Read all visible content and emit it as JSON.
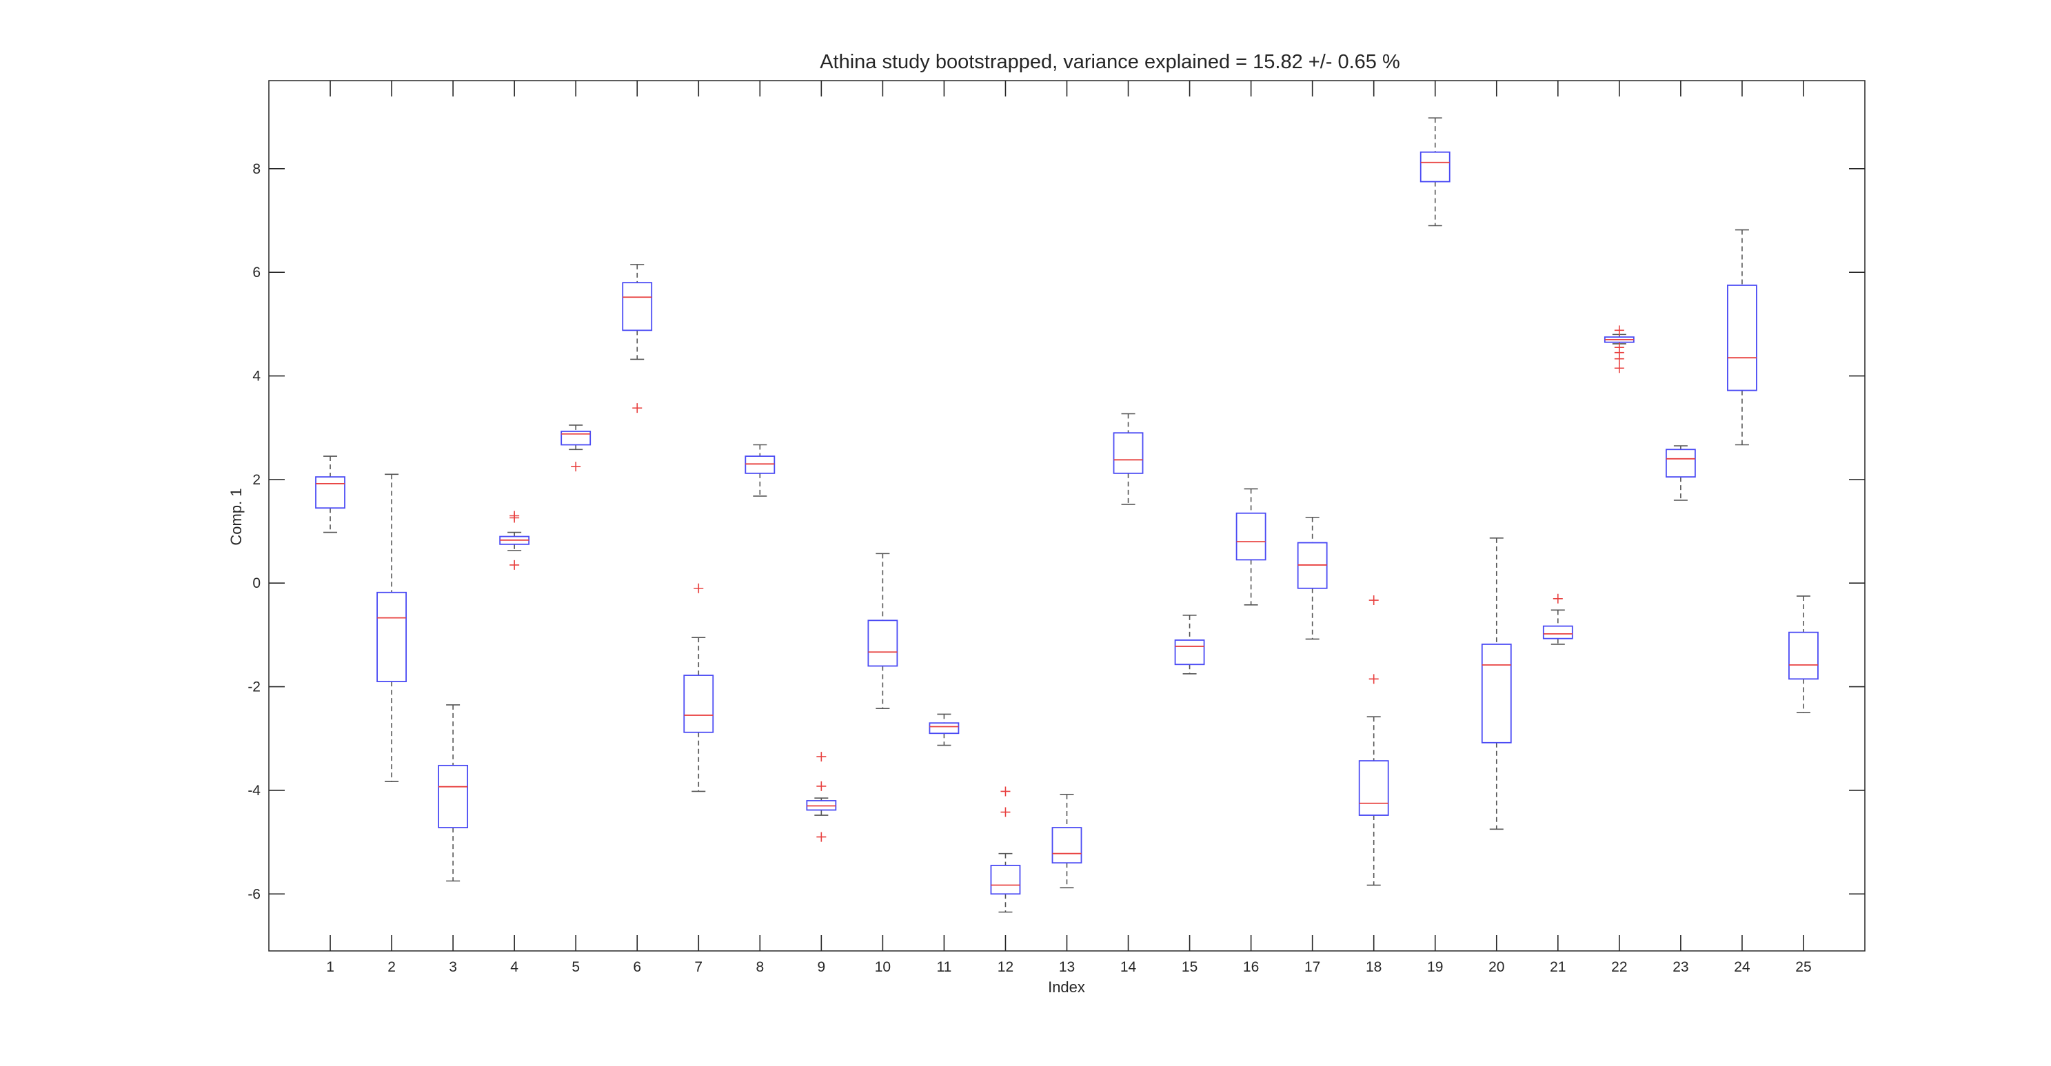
{
  "chart_data": {
    "type": "box",
    "title": "Athina study bootstrapped, variance explained = 15.82 +/- 0.65 %",
    "xlabel": "Index",
    "ylabel": "Comp. 1",
    "xlim": [
      0,
      26
    ],
    "ylim": [
      -7.1,
      9.7
    ],
    "yticks": [
      -6,
      -4,
      -2,
      0,
      2,
      4,
      6,
      8
    ],
    "grid": false,
    "legend": "none",
    "colors": {
      "box": "#4a4af4",
      "median": "#e8403f",
      "whisker": "#555555",
      "outlier": "#e8403f",
      "axis": "#262626"
    },
    "boxes": [
      {
        "index": 1,
        "whisker_low": 0.98,
        "q1": 1.45,
        "median": 1.92,
        "q3": 2.05,
        "whisker_high": 2.45,
        "outliers": []
      },
      {
        "index": 2,
        "whisker_low": -3.83,
        "q1": -1.9,
        "median": -0.67,
        "q3": -0.18,
        "whisker_high": 2.1,
        "outliers": []
      },
      {
        "index": 3,
        "whisker_low": -5.75,
        "q1": -4.72,
        "median": -3.93,
        "q3": -3.52,
        "whisker_high": -2.35,
        "outliers": []
      },
      {
        "index": 4,
        "whisker_low": 0.63,
        "q1": 0.75,
        "median": 0.83,
        "q3": 0.9,
        "whisker_high": 0.98,
        "outliers": [
          1.26,
          1.3,
          0.35
        ]
      },
      {
        "index": 5,
        "whisker_low": 2.58,
        "q1": 2.67,
        "median": 2.88,
        "q3": 2.93,
        "whisker_high": 3.05,
        "outliers": [
          2.25
        ]
      },
      {
        "index": 6,
        "whisker_low": 4.32,
        "q1": 4.88,
        "median": 5.52,
        "q3": 5.8,
        "whisker_high": 6.15,
        "outliers": [
          3.38
        ]
      },
      {
        "index": 7,
        "whisker_low": -4.02,
        "q1": -2.88,
        "median": -2.55,
        "q3": -1.78,
        "whisker_high": -1.05,
        "outliers": [
          -0.1
        ]
      },
      {
        "index": 8,
        "whisker_low": 1.68,
        "q1": 2.12,
        "median": 2.3,
        "q3": 2.45,
        "whisker_high": 2.67,
        "outliers": []
      },
      {
        "index": 9,
        "whisker_low": -4.48,
        "q1": -4.38,
        "median": -4.3,
        "q3": -4.2,
        "whisker_high": -4.15,
        "outliers": [
          -3.35,
          -3.92,
          -4.9
        ]
      },
      {
        "index": 10,
        "whisker_low": -2.42,
        "q1": -1.6,
        "median": -1.33,
        "q3": -0.72,
        "whisker_high": 0.57,
        "outliers": []
      },
      {
        "index": 11,
        "whisker_low": -3.13,
        "q1": -2.9,
        "median": -2.77,
        "q3": -2.7,
        "whisker_high": -2.53,
        "outliers": []
      },
      {
        "index": 12,
        "whisker_low": -6.35,
        "q1": -6.0,
        "median": -5.83,
        "q3": -5.45,
        "whisker_high": -5.22,
        "outliers": [
          -4.02,
          -4.42
        ]
      },
      {
        "index": 13,
        "whisker_low": -5.88,
        "q1": -5.4,
        "median": -5.22,
        "q3": -4.72,
        "whisker_high": -4.08,
        "outliers": []
      },
      {
        "index": 14,
        "whisker_low": 1.52,
        "q1": 2.12,
        "median": 2.38,
        "q3": 2.9,
        "whisker_high": 3.27,
        "outliers": []
      },
      {
        "index": 15,
        "whisker_low": -1.75,
        "q1": -1.57,
        "median": -1.22,
        "q3": -1.1,
        "whisker_high": -0.62,
        "outliers": []
      },
      {
        "index": 16,
        "whisker_low": -0.42,
        "q1": 0.45,
        "median": 0.8,
        "q3": 1.35,
        "whisker_high": 1.82,
        "outliers": []
      },
      {
        "index": 17,
        "whisker_low": -1.08,
        "q1": -0.1,
        "median": 0.35,
        "q3": 0.78,
        "whisker_high": 1.27,
        "outliers": []
      },
      {
        "index": 18,
        "whisker_low": -5.83,
        "q1": -4.48,
        "median": -4.25,
        "q3": -3.43,
        "whisker_high": -2.58,
        "outliers": [
          -0.33,
          -1.85
        ]
      },
      {
        "index": 19,
        "whisker_low": 6.9,
        "q1": 7.75,
        "median": 8.12,
        "q3": 8.32,
        "whisker_high": 8.98,
        "outliers": []
      },
      {
        "index": 20,
        "whisker_low": -4.75,
        "q1": -3.08,
        "median": -1.58,
        "q3": -1.18,
        "whisker_high": 0.87,
        "outliers": []
      },
      {
        "index": 21,
        "whisker_low": -1.18,
        "q1": -1.07,
        "median": -0.98,
        "q3": -0.83,
        "whisker_high": -0.52,
        "outliers": [
          -0.3
        ]
      },
      {
        "index": 22,
        "whisker_low": 4.62,
        "q1": 4.65,
        "median": 4.7,
        "q3": 4.75,
        "whisker_high": 4.8,
        "outliers": [
          4.88,
          4.55,
          4.45,
          4.33,
          4.15
        ]
      },
      {
        "index": 23,
        "whisker_low": 1.6,
        "q1": 2.05,
        "median": 2.4,
        "q3": 2.58,
        "whisker_high": 2.65,
        "outliers": []
      },
      {
        "index": 24,
        "whisker_low": 2.67,
        "q1": 3.72,
        "median": 4.35,
        "q3": 5.75,
        "whisker_high": 6.82,
        "outliers": []
      },
      {
        "index": 25,
        "whisker_low": -2.5,
        "q1": -1.85,
        "median": -1.58,
        "q3": -0.95,
        "whisker_high": -0.25,
        "outliers": []
      }
    ]
  }
}
